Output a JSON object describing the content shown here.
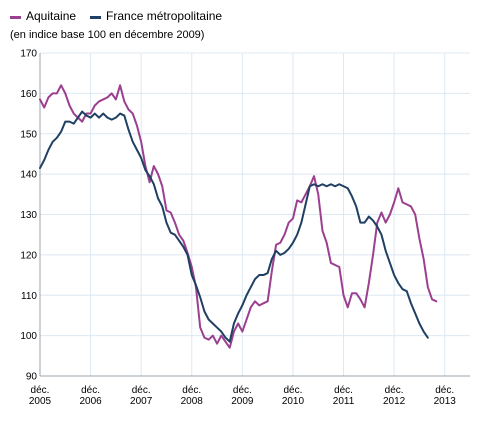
{
  "legend": {
    "items": [
      {
        "label": "Aquitaine",
        "color": "#9b3f8f"
      },
      {
        "label": "France métropolitaine",
        "color": "#1f3f63"
      }
    ]
  },
  "subtitle": "(en indice base 100 en décembre 2009)",
  "chart_data": {
    "type": "line",
    "title": "",
    "xlabel": "",
    "ylabel": "",
    "ylim": [
      90,
      170
    ],
    "yticks": [
      90,
      100,
      110,
      120,
      130,
      140,
      150,
      160,
      170
    ],
    "xticks": [
      {
        "label": "déc. 2005",
        "year": "déc.",
        "year2": "2005",
        "x": 0
      },
      {
        "label": "déc. 2006",
        "year": "déc.",
        "year2": "2006",
        "x": 12
      },
      {
        "label": "déc. 2007",
        "year": "déc.",
        "year2": "2007",
        "x": 24
      },
      {
        "label": "déc. 2008",
        "year": "déc.",
        "year2": "2008",
        "x": 36
      },
      {
        "label": "déc. 2009",
        "year": "déc.",
        "year2": "2009",
        "x": 48
      },
      {
        "label": "déc. 2010",
        "year": "déc.",
        "year2": "2010",
        "x": 60
      },
      {
        "label": "déc. 2011",
        "year": "déc.",
        "year2": "2011",
        "x": 72
      },
      {
        "label": "déc. 2012",
        "year": "déc.",
        "year2": "2012",
        "x": 84
      },
      {
        "label": "déc. 2013",
        "year": "déc.",
        "year2": "2013",
        "x": 96
      }
    ],
    "xlim": [
      0,
      102
    ],
    "grid": true,
    "legend_position": "top-left",
    "series": [
      {
        "name": "Aquitaine",
        "color": "#9b3f8f",
        "values": [
          158.5,
          156.5,
          159,
          160,
          160,
          162,
          160,
          157,
          155,
          154,
          153,
          155,
          155,
          157,
          158,
          158.5,
          159,
          160,
          158.5,
          162,
          158,
          156,
          155,
          152,
          148,
          142,
          138,
          142,
          140,
          137,
          131,
          130.5,
          128,
          125,
          123.5,
          120.5,
          117,
          112,
          102,
          99.5,
          99,
          100,
          98,
          100,
          98.5,
          97,
          101,
          103,
          101,
          104,
          107,
          108.5,
          107.5,
          108,
          108.5,
          116,
          122.5,
          123,
          125,
          128,
          129,
          133.5,
          133,
          135,
          137,
          139.5,
          135,
          126,
          123,
          118,
          117.5,
          117,
          110,
          107,
          110.5,
          110.5,
          109,
          107,
          113,
          120,
          128,
          130.5,
          128,
          130,
          133,
          136.5,
          133,
          132.5,
          132,
          130,
          124,
          119,
          112,
          109,
          108.5
        ]
      },
      {
        "name": "France métropolitaine",
        "color": "#1f3f63",
        "values": [
          141.5,
          143.5,
          146,
          148,
          149,
          150.5,
          153,
          153,
          152.5,
          154,
          155.5,
          154.5,
          154,
          155,
          154,
          155,
          154,
          153.5,
          154,
          155,
          154.5,
          151,
          148,
          146,
          144,
          141,
          139.5,
          137.5,
          134,
          132,
          128,
          125.5,
          125,
          123.5,
          122,
          120,
          115,
          112.5,
          109.5,
          106,
          104,
          103,
          102,
          101,
          99.5,
          98.5,
          103,
          105.5,
          107.5,
          110,
          112,
          114,
          115,
          115,
          115.5,
          119,
          121,
          120,
          120.5,
          121.5,
          123,
          125,
          128,
          132.5,
          137,
          137.5,
          137,
          137.5,
          137,
          137.5,
          137,
          137.5,
          137,
          136.5,
          134.5,
          132,
          128,
          128,
          129.5,
          128.5,
          127,
          125,
          121,
          118,
          115,
          113,
          111.5,
          111,
          108,
          105.5,
          103,
          101,
          99.5
        ]
      }
    ]
  }
}
